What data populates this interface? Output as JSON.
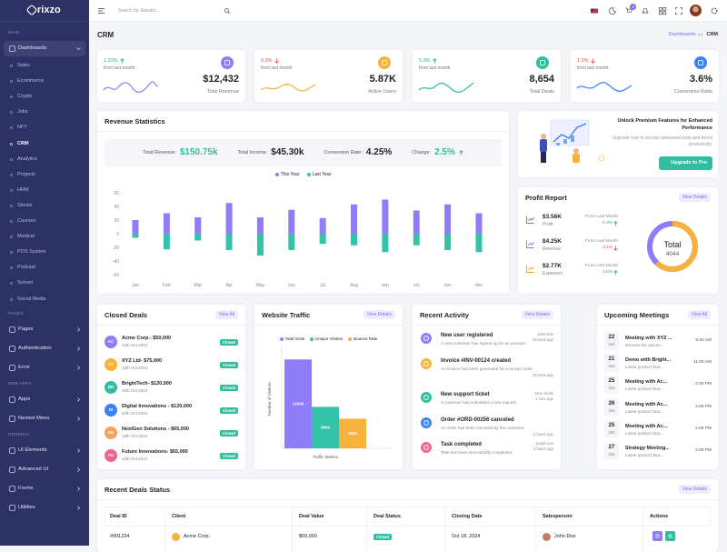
{
  "sidebar": {
    "logo": "rixzo",
    "menu": [
      {
        "heading": "MAIN"
      },
      {
        "item": "Dashboards",
        "open": true
      },
      {
        "subitem": "Sales"
      },
      {
        "subitem": "Ecommerce"
      },
      {
        "subitem": "Crypto"
      },
      {
        "subitem": "Jobs"
      },
      {
        "subitem": "NFT"
      },
      {
        "subitem": "CRM",
        "active": true
      },
      {
        "subitem": "Analytics"
      },
      {
        "subitem": "Projects"
      },
      {
        "subitem": "HRM"
      },
      {
        "subitem": "Stocks"
      },
      {
        "subitem": "Courses"
      },
      {
        "subitem": "Medical"
      },
      {
        "subitem": "POS System"
      },
      {
        "subitem": "Podcast"
      },
      {
        "subitem": "School"
      },
      {
        "subitem": "Social Media"
      },
      {
        "heading": "PAGES"
      },
      {
        "item": "Pages"
      },
      {
        "item": "Authentication"
      },
      {
        "item": "Error"
      },
      {
        "heading": "WEB APPS"
      },
      {
        "item": "Apps"
      },
      {
        "item": "Nested Menu"
      },
      {
        "heading": "GENERAL"
      },
      {
        "item": "UI Elements"
      },
      {
        "item": "Advanced UI"
      },
      {
        "item": "Forms"
      },
      {
        "item": "Utilities"
      }
    ]
  },
  "header": {
    "search_placeholder": "Search for Results...",
    "cart_badge": 4
  },
  "page": {
    "title": "CRM",
    "breadcrumb": [
      "Dashboards",
      "CRM"
    ]
  },
  "stats": [
    {
      "change": "1.23%",
      "trend": "up",
      "note": "from last month",
      "value": "$12,432",
      "label": "Total Revenue"
    },
    {
      "change": "0.3%",
      "trend": "down",
      "note": "from last month",
      "value": "5.87K",
      "label": "Active Users"
    },
    {
      "change": "5.3%",
      "trend": "up",
      "note": "from last month",
      "value": "8,654",
      "label": "Total Deals"
    },
    {
      "change": "1.2%",
      "trend": "down",
      "note": "from last month",
      "value": "3.6%",
      "label": "Conversion Ratio"
    }
  ],
  "revenue": {
    "title": "Revenue Statistics",
    "summary": [
      {
        "label": "Total Revenue:",
        "value": "$150.75k"
      },
      {
        "label": "Total Income:",
        "value": "$45.30k"
      },
      {
        "label": "Conversion Rate:",
        "value": "4.25%"
      },
      {
        "label": "Change:",
        "value": "2.5%",
        "trend": "up"
      }
    ],
    "chart": {
      "type": "bar",
      "categories": [
        "Jan",
        "Feb",
        "Mar",
        "Apr",
        "May",
        "Jun",
        "Jul",
        "Aug",
        "sep",
        "oct",
        "nov",
        "dec"
      ],
      "series": [
        {
          "name": "This Year",
          "color": "#8e7cf8",
          "values": [
            20,
            30,
            24,
            45,
            24,
            35,
            23,
            43,
            50,
            34,
            43,
            30
          ]
        },
        {
          "name": "Last Year",
          "color": "#34c3a8",
          "values": [
            -6,
            -23,
            -10,
            -24,
            -32,
            -24,
            -15,
            -17,
            -27,
            -17,
            -24,
            -27
          ]
        }
      ],
      "ylim": [
        -60,
        60
      ],
      "yticks": [
        60,
        40,
        20,
        0,
        -20,
        -40,
        -60
      ],
      "grid": false,
      "legend": "top"
    }
  },
  "promo": {
    "title": "Unlock Premium Features for Enhanced Performance",
    "text": "Upgrade now to access advanced tools and boost productivity.",
    "button": "Upgrade to Pro"
  },
  "profit": {
    "title": "Profit Report",
    "button": "View Details",
    "items": [
      {
        "value": "$3.56K",
        "label": "Profit",
        "note": "From Last Month",
        "change": "5.3%",
        "trend": "up"
      },
      {
        "value": "$4.25K",
        "label": "Revenue",
        "note": "From Last Month",
        "change": "3.1%",
        "trend": "down"
      },
      {
        "value": "$2.77K",
        "label": "Expenses",
        "note": "From Last Month",
        "change": "3.6%",
        "trend": "up"
      }
    ],
    "total_label": "Total",
    "total": 4044
  },
  "closed_deals": {
    "title": "Closed Deals",
    "button": "View All",
    "deals": [
      {
        "initials": "AC",
        "name": "Acme Corp.- $50,000",
        "date": "12th Oct,2024",
        "status": "Closed"
      },
      {
        "initials": "XY",
        "name": "XYZ Ltd- $75,000",
        "date": "15th Oct,2024",
        "status": "Closed"
      },
      {
        "initials": "BR",
        "name": "BrightTech- $120,000",
        "date": "20th Oct,2024",
        "status": "Closed"
      },
      {
        "initials": "DI",
        "name": "Digital Innovations - $120,000",
        "date": "20th Oct,2024",
        "status": "Closed"
      },
      {
        "initials": "NE",
        "name": "NextGen Solutions - $65,000",
        "date": "18th Oct,2024",
        "status": "Closed"
      },
      {
        "initials": "FU",
        "name": "Future Innovations- $65,000",
        "date": "12th Oct,2024",
        "status": "Closed"
      }
    ]
  },
  "traffic": {
    "title": "Website Traffic",
    "button": "View Details",
    "chart": {
      "type": "bar",
      "categories": [
        "Traffic Metrics"
      ],
      "ylabel": "Number of Visitors",
      "series": [
        {
          "name": "Total Visits",
          "color": "#8e7cf8",
          "values": [
            12000
          ]
        },
        {
          "name": "Unique Visitors",
          "color": "#34c3a8",
          "values": [
            5600
          ]
        },
        {
          "name": "Bounce Rate",
          "color": "#f7b23b",
          "values": [
            4000
          ]
        }
      ],
      "ylim": [
        0,
        14000
      ],
      "legend": "top"
    }
  },
  "activity": {
    "title": "Recent Activity",
    "button": "View Details",
    "items": [
      {
        "title": "New user registered",
        "text": "A new customer has signed up for an account.",
        "user": "John Doe",
        "time": "10 mins ago"
      },
      {
        "title": "Invoice #INV-00124 created",
        "text": "An invoice has been generated for a receipt order.",
        "time": "30 mins ago"
      },
      {
        "title": "New support ticket",
        "text": "A customer has submitted a new request.",
        "user": "Jane Smith",
        "time": "1 hour ago"
      },
      {
        "title": "Order #ORD-00256 canceled",
        "text": "An order has been canceled by the customer.",
        "time": "2 hours ago"
      },
      {
        "title": "Task completed",
        "text": "Task has been successfully completed.",
        "user": "Sarah Lee",
        "time": "3 hours ago"
      }
    ]
  },
  "meetings": {
    "title": "Upcoming Meetings",
    "button": "View All",
    "items": [
      {
        "day": "22",
        "month": "Oct",
        "title": "Meeting with XYZ ...",
        "text": "Discuss the upcom...",
        "time": "9:30 AM"
      },
      {
        "day": "21",
        "month": "Oct",
        "title": "Demo with Bright...",
        "text": "Latest product feat...",
        "time": "11:00 AM"
      },
      {
        "day": "25",
        "month": "Oct",
        "title": "Meeting with Ac...",
        "text": "Latest product feat...",
        "time": "2:00 PM"
      },
      {
        "day": "26",
        "month": "Oct",
        "title": "Meeting with Ac...",
        "text": "Latest product feat...",
        "time": "2:00 PM"
      },
      {
        "day": "25",
        "month": "Oct",
        "title": "Meeting with Ac...",
        "text": "Latest product feat...",
        "time": "2:00 PM"
      },
      {
        "day": "27",
        "month": "Oct",
        "title": "Strategy Meeting...",
        "text": "Latest product feat...",
        "time": "2:00 PM"
      }
    ]
  },
  "deals_table": {
    "title": "Recent Deals Status",
    "button": "View Details",
    "columns": [
      "Deal ID",
      "Client",
      "Deal Value",
      "Deal Status",
      "Closing Date",
      "Salesperson",
      "Actions"
    ],
    "rows": [
      [
        "#001234",
        "Acme Corp.",
        "$50,000",
        "Closed",
        "Oct 18, 2024",
        "John Doe"
      ]
    ]
  }
}
